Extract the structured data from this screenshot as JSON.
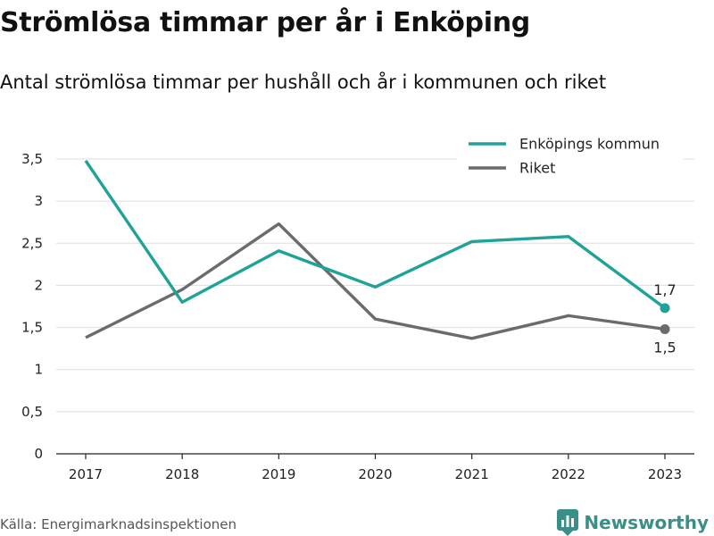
{
  "title": "Strömlösa timmar per år i Enköping",
  "subtitle": "Antal strömlösa timmar per hushåll och år i kommunen och riket",
  "source": "Källa: Energimarknadsinspektionen",
  "brand": {
    "name": "Newsworthy",
    "icon": "newsworthy-logo-icon",
    "color": "#3a8f86"
  },
  "chart_data": {
    "type": "line",
    "categories": [
      "2017",
      "2018",
      "2019",
      "2020",
      "2021",
      "2022",
      "2023"
    ],
    "series": [
      {
        "name": "Enköpings kommun",
        "color": "#1fa398",
        "values": [
          3.48,
          1.8,
          2.41,
          1.98,
          2.52,
          2.58,
          1.73
        ],
        "end_label": "1,7"
      },
      {
        "name": "Riket",
        "color": "#6b6a6f",
        "values": [
          1.38,
          1.95,
          2.73,
          1.6,
          1.37,
          1.64,
          1.48
        ],
        "end_label": "1,5"
      }
    ],
    "yticks": [
      0,
      0.5,
      1,
      1.5,
      2,
      2.5,
      3,
      3.5
    ],
    "ytick_labels": [
      "0",
      "0,5",
      "1",
      "1,5",
      "2",
      "2,5",
      "3",
      "3,5"
    ],
    "ylim": [
      0,
      3.5
    ],
    "xlabel": "",
    "ylabel": "",
    "grid": true,
    "legend_position": "top-right"
  }
}
